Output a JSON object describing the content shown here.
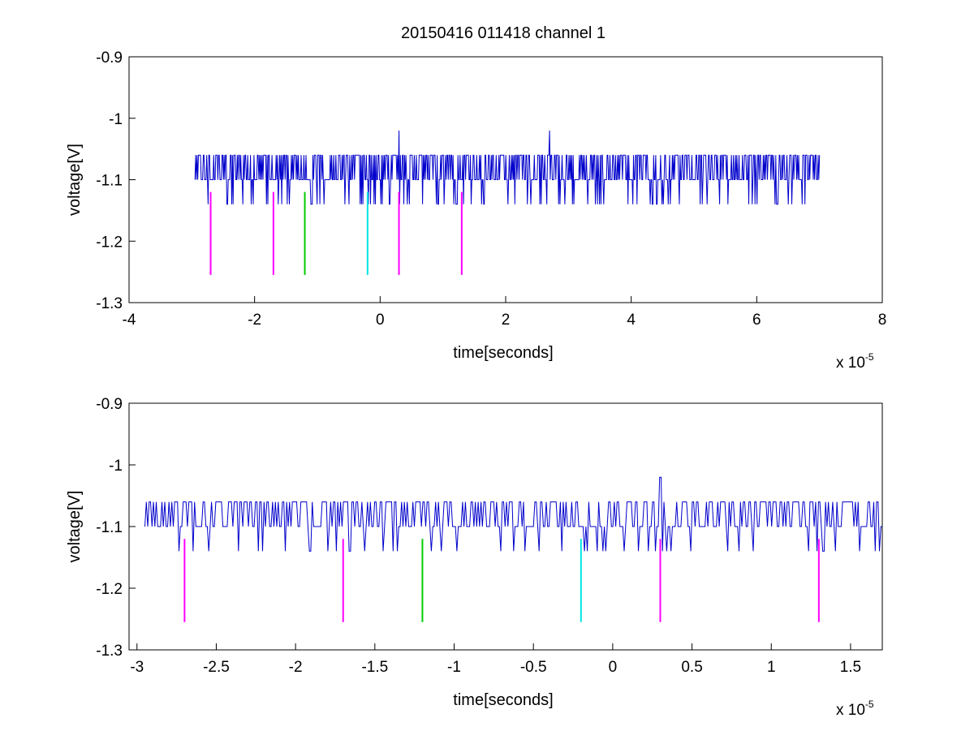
{
  "title": "20150416 011418 channel 1",
  "chart_data": [
    {
      "type": "line",
      "xlabel": "time[seconds]",
      "ylabel": "voltage[V]",
      "x_exponent_base": "x 10",
      "x_exponent_power": "-5",
      "xlim": [
        -4,
        8
      ],
      "ylim": [
        -1.3,
        -0.9
      ],
      "xticks": [
        -4,
        -2,
        0,
        2,
        4,
        6,
        8
      ],
      "xtick_labels": [
        "-4",
        "-2",
        "0",
        "2",
        "4",
        "6",
        "8"
      ],
      "yticks": [
        -0.9,
        -1,
        -1.1,
        -1.2,
        -1.3
      ],
      "ytick_labels": [
        "-0.9",
        "-1",
        "-1.1",
        "-1.2",
        "-1.3"
      ],
      "grid": false,
      "signal": {
        "color": "#0000cc",
        "x_start": -2.95,
        "x_end": 7.0,
        "baseline": -1.1,
        "levels": [
          -1.06,
          -1.1,
          -1.14
        ],
        "spike_x": [
          0.3,
          2.7
        ],
        "spike_value": -1.02
      },
      "markers": [
        {
          "x": -2.7,
          "y_top": -1.12,
          "y_bottom": -1.255,
          "color": "#ff00ff"
        },
        {
          "x": -1.7,
          "y_top": -1.12,
          "y_bottom": -1.255,
          "color": "#ff00ff"
        },
        {
          "x": -1.2,
          "y_top": -1.12,
          "y_bottom": -1.255,
          "color": "#00cc00"
        },
        {
          "x": -0.2,
          "y_top": -1.12,
          "y_bottom": -1.255,
          "color": "#00e5e5"
        },
        {
          "x": 0.3,
          "y_top": -1.12,
          "y_bottom": -1.255,
          "color": "#ff00ff"
        },
        {
          "x": 1.3,
          "y_top": -1.12,
          "y_bottom": -1.255,
          "color": "#ff00ff"
        }
      ]
    },
    {
      "type": "line",
      "xlabel": "time[seconds]",
      "ylabel": "voltage[V]",
      "x_exponent_base": "x 10",
      "x_exponent_power": "-5",
      "xlim": [
        -3.05,
        1.7
      ],
      "ylim": [
        -1.3,
        -0.9
      ],
      "xticks": [
        -3,
        -2.5,
        -2,
        -1.5,
        -1,
        -0.5,
        0,
        0.5,
        1,
        1.5
      ],
      "xtick_labels": [
        "-3",
        "-2.5",
        "-2",
        "-1.5",
        "-1",
        "-0.5",
        "0",
        "0.5",
        "1",
        "1.5"
      ],
      "yticks": [
        -0.9,
        -1,
        -1.1,
        -1.2,
        -1.3
      ],
      "ytick_labels": [
        "-0.9",
        "-1",
        "-1.1",
        "-1.2",
        "-1.3"
      ],
      "grid": false,
      "signal": {
        "color": "#0000cc",
        "x_start": -2.95,
        "x_end": 1.7,
        "baseline": -1.1,
        "levels": [
          -1.06,
          -1.1,
          -1.14
        ],
        "spike_x": [
          0.3
        ],
        "spike_value": -1.02
      },
      "markers": [
        {
          "x": -2.7,
          "y_top": -1.12,
          "y_bottom": -1.255,
          "color": "#ff00ff"
        },
        {
          "x": -1.7,
          "y_top": -1.12,
          "y_bottom": -1.255,
          "color": "#ff00ff"
        },
        {
          "x": -1.2,
          "y_top": -1.12,
          "y_bottom": -1.255,
          "color": "#00cc00"
        },
        {
          "x": -0.2,
          "y_top": -1.12,
          "y_bottom": -1.255,
          "color": "#00e5e5"
        },
        {
          "x": 0.3,
          "y_top": -1.12,
          "y_bottom": -1.255,
          "color": "#ff00ff"
        },
        {
          "x": 1.3,
          "y_top": -1.12,
          "y_bottom": -1.255,
          "color": "#ff00ff"
        }
      ]
    }
  ]
}
